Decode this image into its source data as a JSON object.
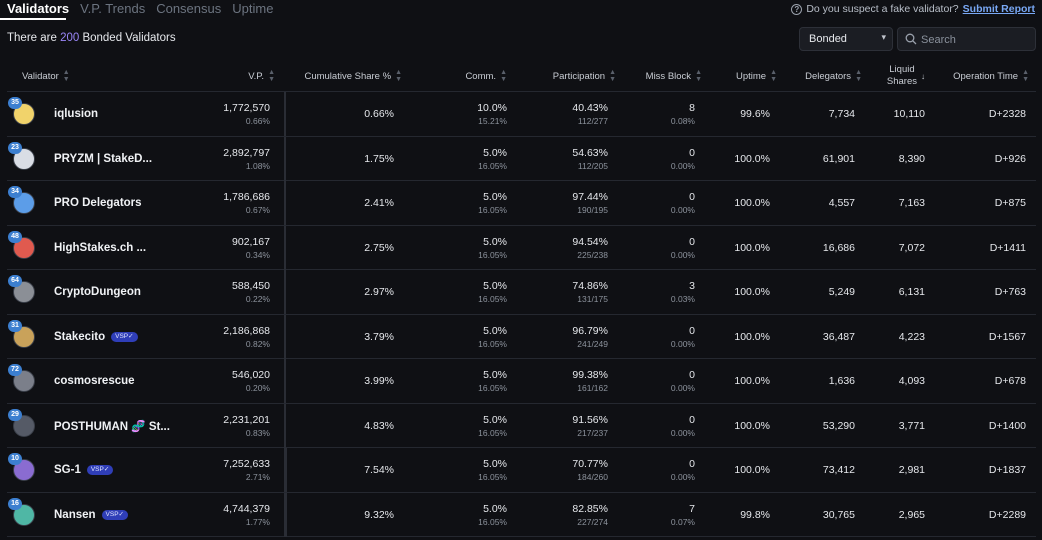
{
  "tabs": [
    {
      "label": "Validators"
    },
    {
      "label": "V.P. Trends"
    },
    {
      "label": "Consensus"
    },
    {
      "label": "Uptime"
    }
  ],
  "report": {
    "question": "Do you suspect a fake validator?",
    "link": "Submit Report"
  },
  "summary": {
    "prefix": "There are",
    "count": "200",
    "suffix": "Bonded Validators"
  },
  "filter": {
    "selected": "Bonded"
  },
  "search": {
    "placeholder": "Search"
  },
  "columns": {
    "validator": "Validator",
    "vp": "V.P.",
    "cumulative": "Cumulative Share %",
    "comm": "Comm.",
    "participation": "Participation",
    "miss_block": "Miss Block",
    "uptime": "Uptime",
    "delegators": "Delegators",
    "liquid_1": "Liquid",
    "liquid_2": "Shares",
    "op_time": "Operation Time"
  },
  "rows": [
    {
      "rank": "35",
      "name": "iqlusion",
      "badge": "",
      "vp": "1,772,570",
      "vp_pct": "0.66%",
      "cum": "0.66%",
      "comm": "10.0%",
      "comm_sub": "15.21%",
      "part": "40.43%",
      "part_sub": "112/277",
      "miss": "8",
      "miss_sub": "0.08%",
      "uptime": "99.6%",
      "delegators": "7,734",
      "liquid": "10,110",
      "op": "D+2328"
    },
    {
      "rank": "23",
      "name": "PRYZM | StakeD...",
      "badge": "",
      "vp": "2,892,797",
      "vp_pct": "1.08%",
      "cum": "1.75%",
      "comm": "5.0%",
      "comm_sub": "16.05%",
      "part": "54.63%",
      "part_sub": "112/205",
      "miss": "0",
      "miss_sub": "0.00%",
      "uptime": "100.0%",
      "delegators": "61,901",
      "liquid": "8,390",
      "op": "D+926"
    },
    {
      "rank": "34",
      "name": "PRO Delegators",
      "badge": "",
      "vp": "1,786,686",
      "vp_pct": "0.67%",
      "cum": "2.41%",
      "comm": "5.0%",
      "comm_sub": "16.05%",
      "part": "97.44%",
      "part_sub": "190/195",
      "miss": "0",
      "miss_sub": "0.00%",
      "uptime": "100.0%",
      "delegators": "4,557",
      "liquid": "7,163",
      "op": "D+875"
    },
    {
      "rank": "48",
      "name": "HighStakes.ch ...",
      "badge": "",
      "vp": "902,167",
      "vp_pct": "0.34%",
      "cum": "2.75%",
      "comm": "5.0%",
      "comm_sub": "16.05%",
      "part": "94.54%",
      "part_sub": "225/238",
      "miss": "0",
      "miss_sub": "0.00%",
      "uptime": "100.0%",
      "delegators": "16,686",
      "liquid": "7,072",
      "op": "D+1411"
    },
    {
      "rank": "64",
      "name": "CryptoDungeon",
      "badge": "",
      "vp": "588,450",
      "vp_pct": "0.22%",
      "cum": "2.97%",
      "comm": "5.0%",
      "comm_sub": "16.05%",
      "part": "74.86%",
      "part_sub": "131/175",
      "miss": "3",
      "miss_sub": "0.03%",
      "uptime": "100.0%",
      "delegators": "5,249",
      "liquid": "6,131",
      "op": "D+763"
    },
    {
      "rank": "31",
      "name": "Stakecito",
      "badge": "VSP✓",
      "vp": "2,186,868",
      "vp_pct": "0.82%",
      "cum": "3.79%",
      "comm": "5.0%",
      "comm_sub": "16.05%",
      "part": "96.79%",
      "part_sub": "241/249",
      "miss": "0",
      "miss_sub": "0.00%",
      "uptime": "100.0%",
      "delegators": "36,487",
      "liquid": "4,223",
      "op": "D+1567"
    },
    {
      "rank": "72",
      "name": "cosmosrescue",
      "badge": "",
      "vp": "546,020",
      "vp_pct": "0.20%",
      "cum": "3.99%",
      "comm": "5.0%",
      "comm_sub": "16.05%",
      "part": "99.38%",
      "part_sub": "161/162",
      "miss": "0",
      "miss_sub": "0.00%",
      "uptime": "100.0%",
      "delegators": "1,636",
      "liquid": "4,093",
      "op": "D+678"
    },
    {
      "rank": "29",
      "name": "POSTHUMAN 🧬 St...",
      "badge": "",
      "vp": "2,231,201",
      "vp_pct": "0.83%",
      "cum": "4.83%",
      "comm": "5.0%",
      "comm_sub": "16.05%",
      "part": "91.56%",
      "part_sub": "217/237",
      "miss": "0",
      "miss_sub": "0.00%",
      "uptime": "100.0%",
      "delegators": "53,290",
      "liquid": "3,771",
      "op": "D+1400"
    },
    {
      "rank": "10",
      "name": "SG-1",
      "badge": "VSP✓",
      "vp": "7,252,633",
      "vp_pct": "2.71%",
      "cum": "7.54%",
      "comm": "5.0%",
      "comm_sub": "16.05%",
      "part": "70.77%",
      "part_sub": "184/260",
      "miss": "0",
      "miss_sub": "0.00%",
      "uptime": "100.0%",
      "delegators": "73,412",
      "liquid": "2,981",
      "op": "D+1837"
    },
    {
      "rank": "16",
      "name": "Nansen",
      "badge": "VSP✓",
      "vp": "4,744,379",
      "vp_pct": "1.77%",
      "cum": "9.32%",
      "comm": "5.0%",
      "comm_sub": "16.05%",
      "part": "82.85%",
      "part_sub": "227/274",
      "miss": "7",
      "miss_sub": "0.07%",
      "uptime": "99.8%",
      "delegators": "30,765",
      "liquid": "2,965",
      "op": "D+2289"
    }
  ]
}
